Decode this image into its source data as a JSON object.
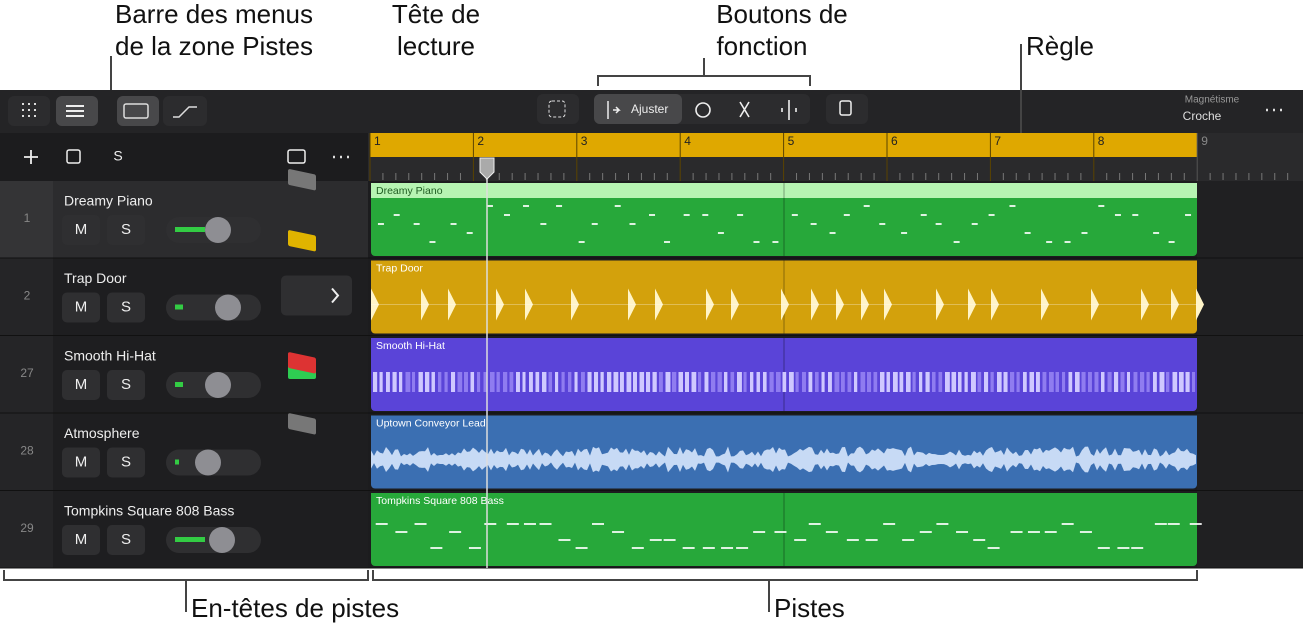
{
  "annotations": {
    "menu_bar": [
      "Barre des menus",
      "de la zone Pistes"
    ],
    "playhead": [
      "Tête de",
      "lecture"
    ],
    "function_buttons": [
      "Boutons de",
      "fonction"
    ],
    "ruler": "Règle",
    "track_headers": "En-têtes de pistes",
    "tracks": "Pistes"
  },
  "toolbar": {
    "fit": "Ajuster",
    "snap_label": "Magnétisme",
    "snap_value": "Croche"
  },
  "header_bar": {
    "solo": "S"
  },
  "ruler": [
    "1",
    "2",
    "3",
    "4",
    "5",
    "6",
    "7",
    "8",
    "9"
  ],
  "tracks": [
    {
      "number": "1",
      "name": "Dreamy Piano",
      "mute": "M",
      "solo": "S",
      "region": "Dreamy Piano"
    },
    {
      "number": "2",
      "name": "Trap Door",
      "mute": "M",
      "solo": "S",
      "region": "Trap Door"
    },
    {
      "number": "27",
      "name": "Smooth Hi-Hat",
      "mute": "M",
      "solo": "S",
      "region": "Smooth Hi-Hat"
    },
    {
      "number": "28",
      "name": "Atmosphere",
      "mute": "M",
      "solo": "S",
      "region": "Uptown Conveyor Lead"
    },
    {
      "number": "29",
      "name": "Tompkins Square 808 Bass",
      "mute": "M",
      "solo": "S",
      "region": "Tompkins Square 808 Bass"
    }
  ]
}
